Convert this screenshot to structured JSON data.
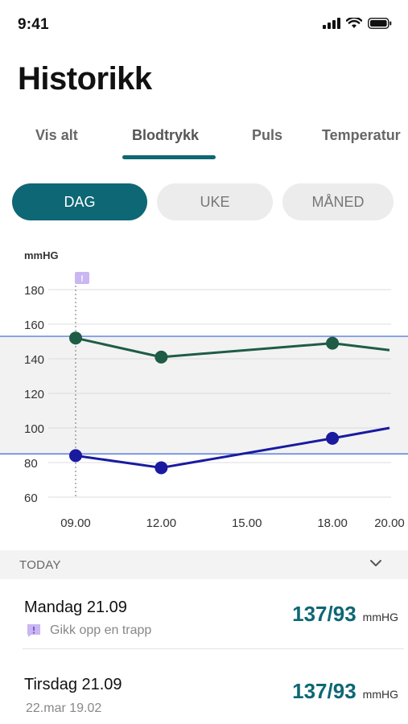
{
  "status_bar": {
    "time": "9:41"
  },
  "page": {
    "title": "Historikk"
  },
  "tabs": [
    {
      "label": "Vis alt"
    },
    {
      "label": "Blodtrykk",
      "active": true
    },
    {
      "label": "Puls"
    },
    {
      "label": "Temperatur"
    }
  ],
  "period": [
    {
      "label": "DAG",
      "active": true
    },
    {
      "label": "UKE"
    },
    {
      "label": "MÅNED"
    }
  ],
  "chart_data": {
    "type": "line",
    "ylabel": "mmHG",
    "ylim": [
      60,
      190
    ],
    "yticks": [
      "180",
      "160",
      "140",
      "120",
      "100",
      "80",
      "60"
    ],
    "xticks": [
      "09.00",
      "12.00",
      "15.00",
      "18.00",
      "20.00"
    ],
    "x_range": [
      9,
      20
    ],
    "reference_lines": [
      153,
      85
    ],
    "series": [
      {
        "color": "#1e5c45",
        "points": [
          [
            9,
            152
          ],
          [
            12,
            141
          ],
          [
            18,
            149
          ],
          [
            20,
            145
          ]
        ],
        "markers": [
          [
            9,
            152
          ],
          [
            12,
            141
          ],
          [
            18,
            149
          ]
        ]
      },
      {
        "color": "#1a1aa0",
        "points": [
          [
            9,
            84
          ],
          [
            12,
            77
          ],
          [
            18,
            94
          ],
          [
            20,
            100
          ]
        ],
        "markers": [
          [
            9,
            84
          ],
          [
            12,
            77
          ],
          [
            18,
            94
          ]
        ]
      }
    ],
    "note_marker_x": 9,
    "note_marker_glyph": "!",
    "colors": {
      "band": "#f2f2f2",
      "reference": "#5b7fe0",
      "grid": "#dcdcdc",
      "note": "#c9b6f2"
    }
  },
  "section": {
    "label": "TODAY"
  },
  "entries": [
    {
      "title": "Mandag 21.09",
      "subtitle": "Gikk opp en trapp",
      "has_note": true,
      "value": "137/93",
      "unit": "mmHG"
    },
    {
      "title": "Tirsdag 21.09",
      "subtitle": "22.mar 19.02",
      "has_note": false,
      "value": "137/93",
      "unit": "mmHG"
    }
  ],
  "colors": {
    "accent": "#0e6774",
    "note": "#c9b6f2"
  }
}
